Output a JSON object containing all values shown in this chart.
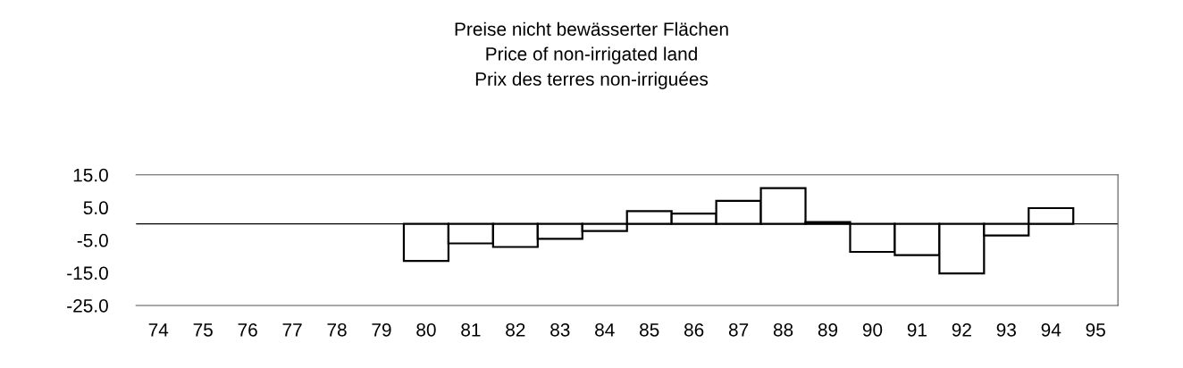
{
  "chart_data": {
    "type": "bar",
    "title": "Preise nicht bewässerter Flächen\nPrice of non-irrigated land\nPrix des terres non-irriguées",
    "categories": [
      "74",
      "75",
      "76",
      "77",
      "78",
      "79",
      "80",
      "81",
      "82",
      "83",
      "84",
      "85",
      "86",
      "87",
      "88",
      "89",
      "90",
      "91",
      "92",
      "93",
      "94",
      "95"
    ],
    "series": [
      {
        "color": "#ffffff",
        "values": [
          null,
          null,
          null,
          null,
          null,
          null,
          -11.4,
          -6.0,
          -7.1,
          -4.6,
          -2.2,
          3.9,
          3.1,
          7.0,
          10.9,
          0.5,
          -8.6,
          -9.6,
          -15.2,
          -3.6,
          4.8,
          null
        ]
      }
    ],
    "ylim": [
      -25,
      15
    ],
    "yticks": [
      {
        "value": 15,
        "label": "15.0"
      },
      {
        "value": 5,
        "label": "5.0"
      },
      {
        "value": -5,
        "label": "-5.0"
      },
      {
        "value": -15,
        "label": "-15.0"
      },
      {
        "value": -25,
        "label": "-25.0"
      }
    ],
    "ref_lines": [
      {
        "axis": "y",
        "value": 0,
        "color": "#000000"
      }
    ],
    "grid": false,
    "legend": false
  }
}
